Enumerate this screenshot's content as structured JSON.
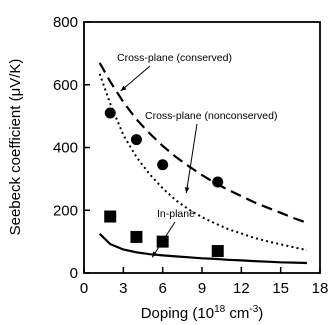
{
  "chart_data": {
    "type": "scatter",
    "xlabel": "Doping (10",
    "xlabel_sup": "18",
    "xlabel_unit": " cm",
    "xlabel_sup2": "-3",
    "xlabel_close": ")",
    "ylabel": "Seebeck coefficient (μV/K)",
    "xlim": [
      0,
      18
    ],
    "ylim": [
      0,
      800
    ],
    "grid": false,
    "xticks": [
      0,
      3,
      6,
      9,
      12,
      15,
      18
    ],
    "yticks": [
      0,
      200,
      400,
      600,
      800
    ],
    "annotations": [
      {
        "text": "Cross-plane (conserved)",
        "target_series": "cross-plane-conserved",
        "target_x": 2.8,
        "target_y": 580
      },
      {
        "text": "Cross-plane (nonconserved)",
        "target_series": "cross-plane-nonconserved",
        "target_x": 7.8,
        "target_y": 255
      },
      {
        "text": "In-plane",
        "target_series": "in-plane-theory",
        "target_x": 5.2,
        "target_y": 50
      }
    ],
    "series": [
      {
        "id": "cross-plane-conserved",
        "kind": "line",
        "style": "dashed",
        "x": [
          1.2,
          2,
          3,
          4,
          5,
          6,
          7,
          8,
          9,
          10,
          11,
          12,
          13,
          14,
          15,
          16,
          17
        ],
        "y": [
          670,
          610,
          545,
          490,
          445,
          405,
          370,
          340,
          312,
          287,
          265,
          245,
          225,
          208,
          192,
          175,
          160
        ]
      },
      {
        "id": "cross-plane-nonconserved",
        "kind": "line",
        "style": "dotted",
        "x": [
          1.2,
          2,
          3,
          4,
          5,
          6,
          7,
          8,
          9,
          10,
          11,
          12,
          13,
          14,
          15,
          16,
          17
        ],
        "y": [
          635,
          540,
          440,
          370,
          315,
          270,
          232,
          202,
          178,
          158,
          140,
          126,
          112,
          101,
          91,
          82,
          73
        ]
      },
      {
        "id": "in-plane-theory",
        "kind": "line",
        "style": "solid",
        "x": [
          1.2,
          2,
          3,
          4,
          5,
          6,
          7,
          8,
          9,
          10,
          11,
          12,
          13,
          14,
          15,
          16,
          17
        ],
        "y": [
          125,
          92,
          75,
          66,
          60,
          56,
          53,
          50,
          47,
          45,
          42,
          40,
          38,
          36,
          34,
          33,
          32
        ]
      },
      {
        "id": "cross-plane-measured",
        "kind": "points",
        "marker": "circle",
        "x": [
          2,
          4,
          6,
          10.2
        ],
        "y": [
          510,
          425,
          345,
          290
        ]
      },
      {
        "id": "in-plane-measured",
        "kind": "points",
        "marker": "square",
        "x": [
          2,
          4,
          6,
          10.2
        ],
        "y": [
          180,
          115,
          100,
          70
        ]
      }
    ]
  }
}
